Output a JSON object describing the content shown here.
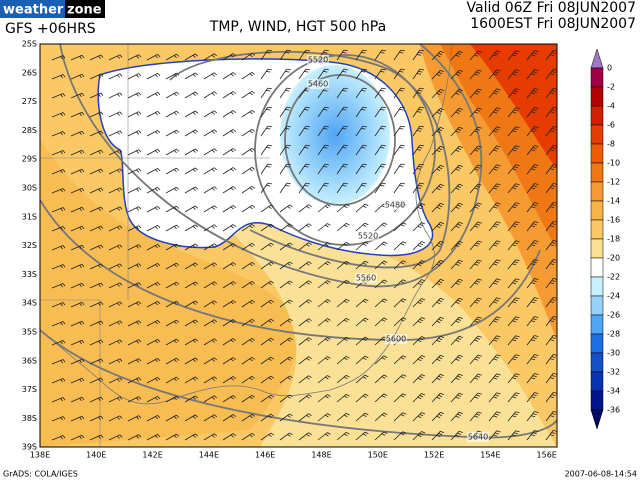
{
  "header": {
    "logo": [
      "weather",
      "zone"
    ],
    "run": "GFS +06HRS",
    "title": "TMP, WIND, HGT 500 hPa",
    "valid": "Valid 06Z Fri 08JUN2007",
    "local": "1600EST Fri 08JUN2007"
  },
  "map": {
    "lat_labels": [
      "25S",
      "26S",
      "27S",
      "28S",
      "29S",
      "30S",
      "31S",
      "32S",
      "33S",
      "34S",
      "35S",
      "36S",
      "37S",
      "38S",
      "39S"
    ],
    "lon_labels": [
      "138E",
      "140E",
      "142E",
      "144E",
      "146E",
      "148E",
      "150E",
      "152E",
      "154E",
      "156E"
    ],
    "contour_labels": [
      "5520",
      "5460",
      "5480",
      "5520",
      "5560",
      "5600",
      "5640"
    ]
  },
  "colorbar": {
    "labels": [
      0,
      -2,
      -4,
      -6,
      -8,
      -10,
      -12,
      -14,
      -16,
      -18,
      -20,
      -22,
      -24,
      -26,
      -28,
      -30,
      -32,
      -34,
      -36
    ],
    "colors": [
      "#a078c8",
      "#a00046",
      "#b40000",
      "#d21e00",
      "#e63c00",
      "#f05a00",
      "#f07814",
      "#f59b32",
      "#f5b446",
      "#fac864",
      "#fae196",
      "#ffffff",
      "#c8f0ff",
      "#96d2fa",
      "#50a5f5",
      "#1e6ee6",
      "#1450c8",
      "#0a32b4",
      "#00148c",
      "#000a64"
    ]
  },
  "footer": {
    "credit": "GrADS: COLA/IGES",
    "timestamp": "2007-06-08-14:54"
  }
}
